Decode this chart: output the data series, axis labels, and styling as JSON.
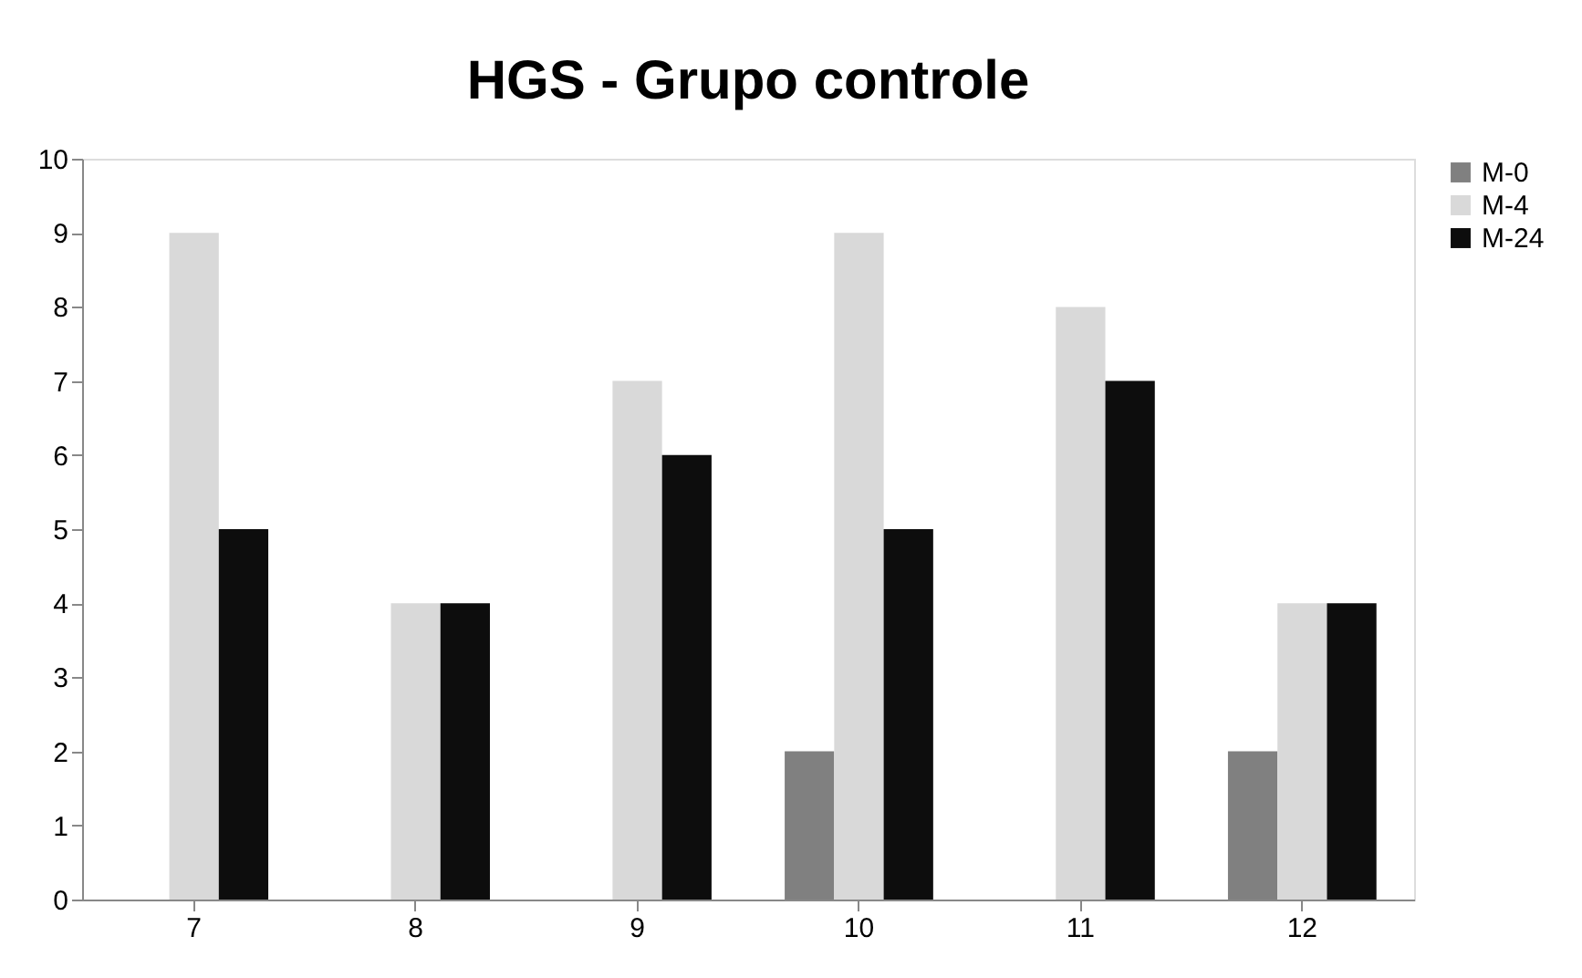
{
  "chart_data": {
    "type": "bar",
    "title": "HGS - Grupo controle",
    "categories": [
      "7",
      "8",
      "9",
      "10",
      "11",
      "12"
    ],
    "series": [
      {
        "name": "M-0",
        "color": "#808080",
        "values": [
          0,
          0,
          0,
          2,
          0,
          2
        ]
      },
      {
        "name": "M-4",
        "color": "#d9d9d9",
        "values": [
          9,
          4,
          7,
          9,
          8,
          4
        ]
      },
      {
        "name": "M-24",
        "color": "#0d0d0d",
        "values": [
          5,
          4,
          6,
          5,
          7,
          4
        ]
      }
    ],
    "ylim": [
      0,
      10
    ],
    "yticks": [
      0,
      1,
      2,
      3,
      4,
      5,
      6,
      7,
      8,
      9,
      10
    ],
    "grid": false,
    "legend": "right"
  }
}
